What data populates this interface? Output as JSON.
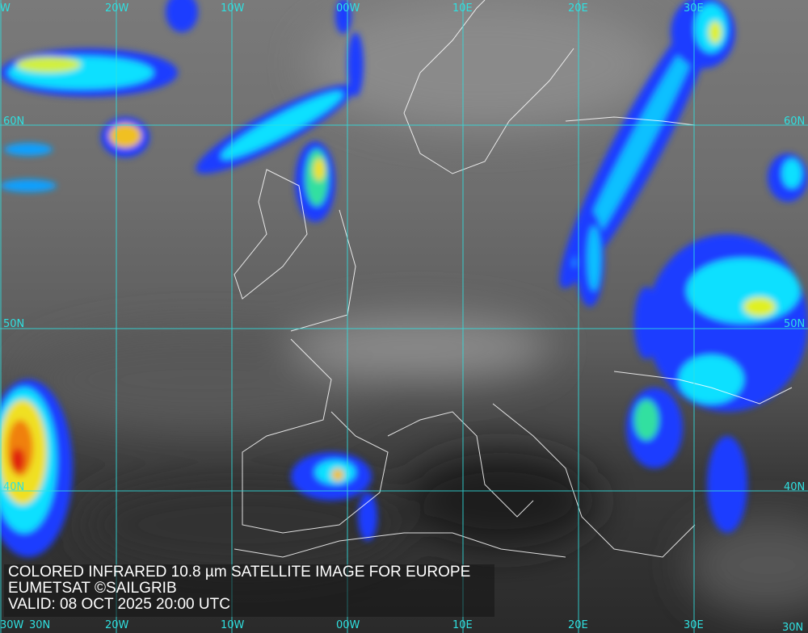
{
  "caption": {
    "title": "COLORED INFRARED 10.8 µm SATELLITE IMAGE FOR EUROPE",
    "credit": "EUMETSAT ©SAILGRIB",
    "valid": "VALID:  08 OCT 2025 20:00 UTC"
  },
  "grid": {
    "color": "#2fe0e0",
    "longitudes": [
      "W",
      "20W",
      "10W",
      "00W",
      "10E",
      "20E",
      "30E"
    ],
    "longitudes_bottom": [
      "30W",
      "20W",
      "10W",
      "00W",
      "10E",
      "20E",
      "30E"
    ],
    "latitudes_left": [
      "60N",
      "50N",
      "40N",
      "30N"
    ],
    "latitudes_right": [
      "60N",
      "50N",
      "40N",
      "30N"
    ]
  },
  "colors": {
    "cold_cloud_blue": "#1a3cff",
    "cyan": "#10e0ff",
    "yellow": "#f0e020",
    "red": "#e02010",
    "coastline": "#ffffff"
  }
}
